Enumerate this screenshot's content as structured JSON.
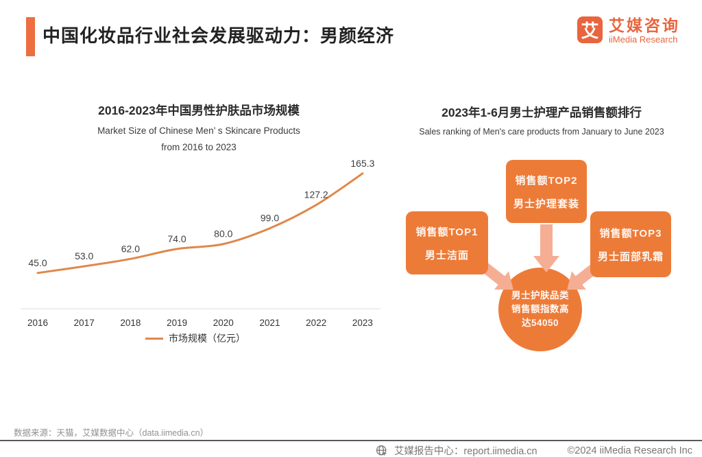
{
  "header": {
    "title": "中国化妆品行业社会发展驱动力：男颜经济",
    "logo": {
      "mark": "艾",
      "name_cn": "艾媒咨询",
      "name_en": "iiMedia Research"
    }
  },
  "left_chart": {
    "title_cn": "2016-2023年中国男性护肤品市场规模",
    "subtitle_en_line1": "Market Size of Chinese Men’ s Skincare Products",
    "subtitle_en_line2": "from 2016 to 2023",
    "legend": "市场规模（亿元）"
  },
  "chart_data": {
    "type": "line",
    "title": "2016-2023年中国男性护肤品市场规模",
    "categories": [
      "2016",
      "2017",
      "2018",
      "2019",
      "2020",
      "2021",
      "2022",
      "2023"
    ],
    "values": [
      45.0,
      53.0,
      62.0,
      74.0,
      80.0,
      99.0,
      127.2,
      165.3
    ],
    "series_name": "市场规模（亿元）",
    "xlabel": "",
    "ylabel": "",
    "unit": "亿元",
    "ylim": [
      0,
      190
    ],
    "grid": false,
    "legend_position": "bottom",
    "line_color": "#E0874A",
    "data_labels_shown": true
  },
  "right_diagram": {
    "title_cn": "2023年1-6月男士护理产品销售额排行",
    "subtitle_en": "Sales ranking of Men's care products from January to June 2023",
    "boxes": [
      {
        "rank_label": "销售额TOP1",
        "product": "男士洁面"
      },
      {
        "rank_label": "销售额TOP2",
        "product": "男士护理套装"
      },
      {
        "rank_label": "销售额TOP3",
        "product": "男士面部乳霜"
      }
    ],
    "center_circle": {
      "line1": "男士护肤品类",
      "line2": "销售额指数高",
      "line3": "达54050"
    }
  },
  "footer": {
    "source": "数据来源：天猫，艾媒数据中心（data.iimedia.cn）",
    "report_center": "艾媒报告中心：report.iimedia.cn",
    "copyright": "©2024  iiMedia Research  Inc"
  },
  "colors": {
    "accent_orange": "#ED6E40",
    "logo_orange": "#E8653E",
    "box_orange": "#ED7B38",
    "arrow_salmon": "#F5AE94",
    "line_orange": "#E0874A",
    "axis_gray": "#E9E9E9",
    "footer_gray": "#787878"
  }
}
